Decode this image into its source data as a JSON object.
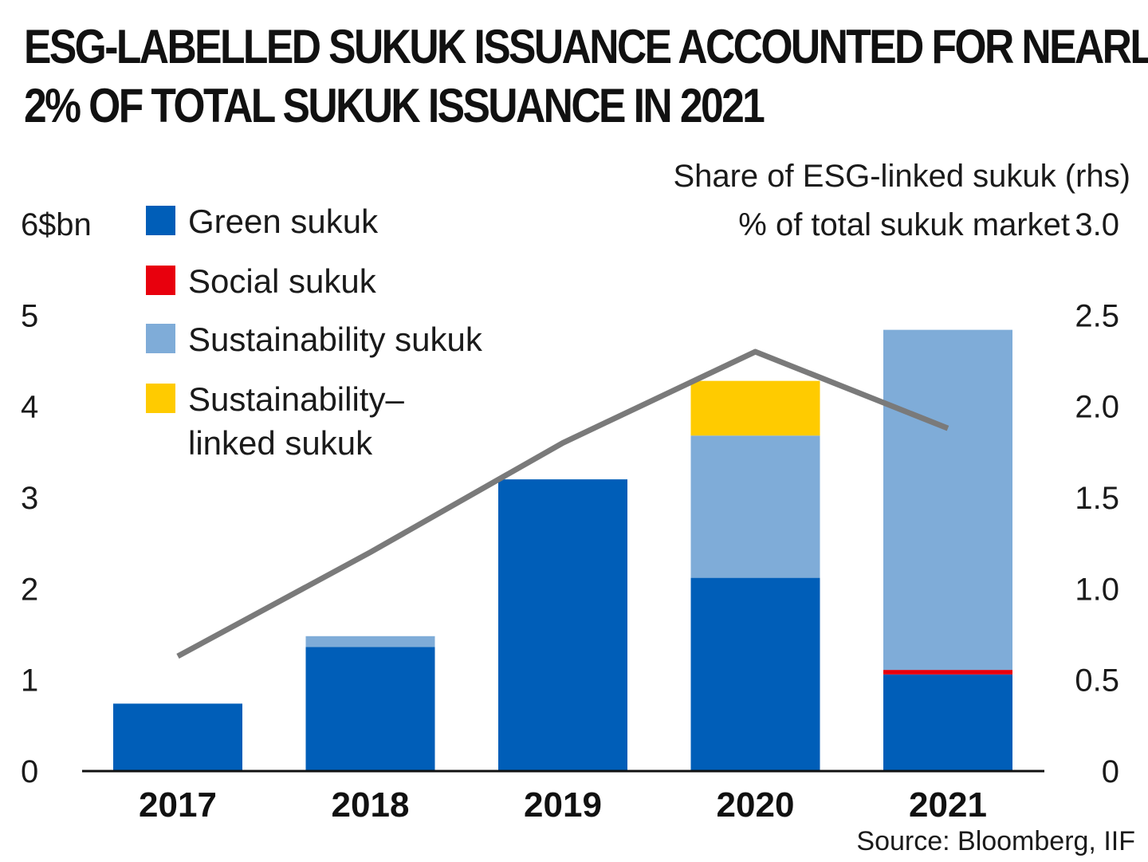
{
  "chart_data": {
    "type": "bar",
    "title_lines": [
      "ESG-LABELLED SUKUK ISSUANCE ACCOUNTED FOR NEARLY",
      "2% OF TOTAL SUKUK ISSUANCE IN 2021"
    ],
    "left_axis_label": "$bn",
    "right_axis_label_lines": [
      "Share of ESG-linked sukuk (rhs)",
      "% of total sukuk market"
    ],
    "source": "Source: Bloomberg, IIF",
    "categories": [
      "2017",
      "2018",
      "2019",
      "2020",
      "2021"
    ],
    "ylim": [
      0,
      6
    ],
    "yticks": [
      "0",
      "1",
      "2",
      "3",
      "4",
      "5",
      "6"
    ],
    "y2lim": [
      0,
      3.0
    ],
    "y2ticks": [
      "0",
      "0.5",
      "1.0",
      "1.5",
      "2.0",
      "2.5",
      "3.0"
    ],
    "stacked": true,
    "series": [
      {
        "name": "Green sukuk",
        "color": "#005eb8",
        "values": [
          0.74,
          1.36,
          3.2,
          2.12,
          1.06
        ]
      },
      {
        "name": "Social sukuk",
        "color": "#e8000d",
        "values": [
          0,
          0,
          0,
          0,
          0.05
        ]
      },
      {
        "name": "Sustainability sukuk",
        "color": "#7facd8",
        "values": [
          0,
          0.12,
          0,
          1.56,
          3.73
        ]
      },
      {
        "name": "Sustainability-linked sukuk",
        "legend_lines": [
          "Sustainability–",
          "linked sukuk"
        ],
        "color": "#ffcb00",
        "values": [
          0,
          0,
          0,
          0.6,
          0
        ]
      }
    ],
    "line_series": {
      "axis": "right",
      "color": "#7a7a7a",
      "values": [
        0.63,
        1.2,
        1.8,
        2.3,
        1.88
      ]
    },
    "legend_position": "top-left",
    "grid": false
  }
}
